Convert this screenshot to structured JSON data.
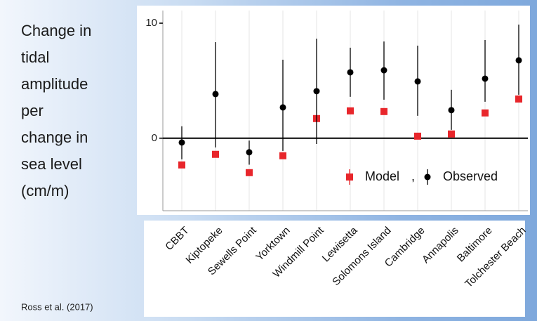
{
  "chart_data": {
    "type": "errorbar",
    "ylabel_lines": [
      "Change in",
      "tidal",
      "amplitude",
      "per",
      "change in",
      "sea level",
      "(cm/m)"
    ],
    "source": "Ross et al. (2017)",
    "categories": [
      "CBBT",
      "Kiptopeke",
      "Sewells Point",
      "Yorktown",
      "Windmill Point",
      "Lewisetta",
      "Solomons Island",
      "Cambridge",
      "Annapolis",
      "Baltimore",
      "Tolchester Beach"
    ],
    "series": [
      {
        "name": "Model",
        "color": "#e8262b",
        "marker": "square",
        "values": [
          -2.32,
          -1.4,
          -2.99,
          -1.52,
          1.71,
          2.38,
          2.32,
          0.18,
          0.37,
          2.2,
          3.41
        ]
      },
      {
        "name": "Observed",
        "color": "#000000",
        "marker": "circle",
        "values": [
          -0.37,
          3.84,
          -1.22,
          2.68,
          4.09,
          5.73,
          5.91,
          4.94,
          2.44,
          5.18,
          6.77
        ],
        "lower": [
          -1.83,
          -0.8,
          -2.3,
          -1.1,
          -0.5,
          3.6,
          3.35,
          1.95,
          0.73,
          3.17,
          3.78
        ],
        "upper": [
          1.04,
          8.35,
          -0.2,
          6.83,
          8.66,
          7.87,
          8.41,
          8.05,
          4.21,
          8.54,
          9.88
        ]
      }
    ],
    "legend_separator": ",",
    "ylim": [
      -6.3,
      11.1
    ],
    "yticks": [
      0,
      10
    ],
    "grid": true
  }
}
